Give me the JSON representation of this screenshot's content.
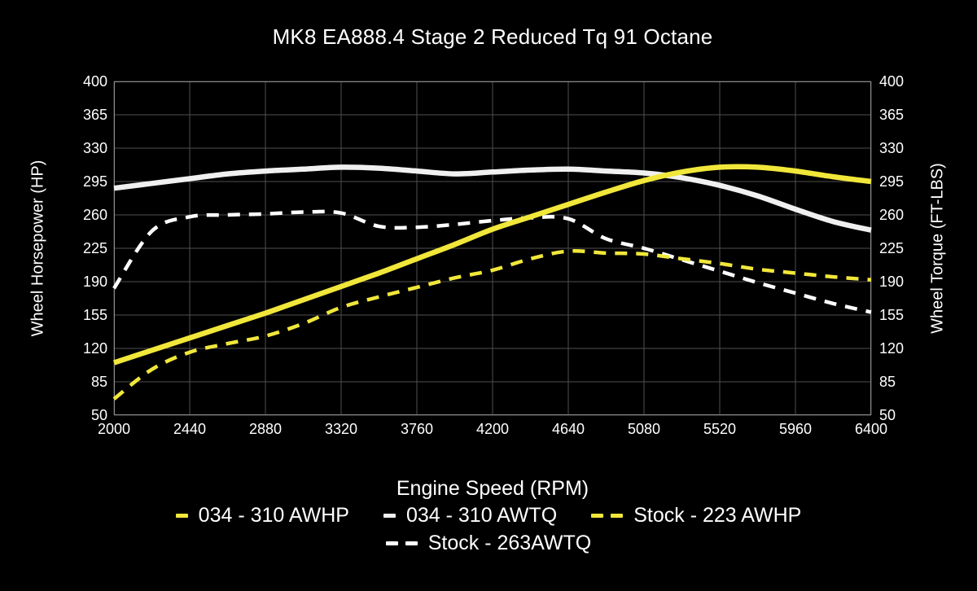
{
  "title": "MK8 EA888.4 Stage 2 Reduced Tq 91 Octane",
  "axes": {
    "x": {
      "label": "Engine Speed (RPM)",
      "min": 2000,
      "max": 6400,
      "ticks": [
        2000,
        2440,
        2880,
        3320,
        3760,
        4200,
        4640,
        5080,
        5520,
        5960,
        6400
      ]
    },
    "y_left": {
      "label": "Wheel Horsepower (HP)",
      "min": 50,
      "max": 400,
      "ticks": [
        400,
        365,
        330,
        295,
        260,
        225,
        190,
        155,
        120,
        85,
        50
      ]
    },
    "y_right": {
      "label": "Wheel Torque (FT-LBS)",
      "min": 50,
      "max": 400,
      "ticks": [
        400,
        365,
        330,
        295,
        260,
        225,
        190,
        155,
        120,
        85,
        50
      ]
    }
  },
  "colors": {
    "background": "#000000",
    "text": "#ffffff",
    "grid": "#4f4f4f",
    "spine": "#8a8a8a",
    "accent_yellow": "#f1e73a",
    "accent_white": "#f0f0f0"
  },
  "chart_data": {
    "type": "line",
    "title": "MK8 EA888.4 Stage 2 Reduced Tq 91 Octane",
    "xlabel": "Engine Speed (RPM)",
    "ylabel_left": "Wheel Horsepower (HP)",
    "ylabel_right": "Wheel Torque (FT-LBS)",
    "xlim": [
      2000,
      6400
    ],
    "ylim": [
      50,
      400
    ],
    "grid": true,
    "legend_position": "bottom",
    "x": [
      2000,
      2220,
      2440,
      2660,
      2880,
      3100,
      3320,
      3540,
      3760,
      3980,
      4200,
      4420,
      4640,
      4860,
      5080,
      5300,
      5520,
      5740,
      5960,
      6180,
      6400
    ],
    "series": [
      {
        "name": "Stock - 263AWTQ",
        "color": "#ffffff",
        "style": "dashed",
        "width": 4.5,
        "values": [
          183,
          243,
          258,
          260,
          261,
          263,
          262,
          248,
          247,
          250,
          254,
          257,
          256,
          235,
          225,
          213,
          201,
          189,
          178,
          167,
          158
        ]
      },
      {
        "name": "Stock - 223 AWHP",
        "color": "#f1e73a",
        "style": "dashed",
        "width": 4.5,
        "values": [
          67,
          98,
          116,
          125,
          133,
          146,
          163,
          174,
          184,
          194,
          202,
          214,
          222,
          220,
          219,
          214,
          209,
          203,
          199,
          195,
          192
        ]
      },
      {
        "name": "034 - 310 AWTQ",
        "color": "#f0f0f0",
        "style": "solid",
        "width": 6.5,
        "values": [
          288,
          293,
          298,
          303,
          306,
          308,
          310,
          309,
          306,
          303,
          305,
          307,
          308,
          306,
          304,
          299,
          291,
          280,
          266,
          253,
          244
        ]
      },
      {
        "name": "034 - 310 AWHP",
        "color": "#f1e73a",
        "style": "solid",
        "width": 6.5,
        "values": [
          105,
          118,
          131,
          144,
          157,
          171,
          185,
          199,
          214,
          229,
          245,
          258,
          271,
          284,
          296,
          305,
          310,
          310,
          306,
          300,
          295
        ]
      }
    ],
    "legend_rows": [
      [
        "034 - 310 AWHP",
        "034 - 310 AWTQ",
        "Stock - 223 AWHP"
      ],
      [
        "Stock - 263AWTQ"
      ]
    ]
  }
}
